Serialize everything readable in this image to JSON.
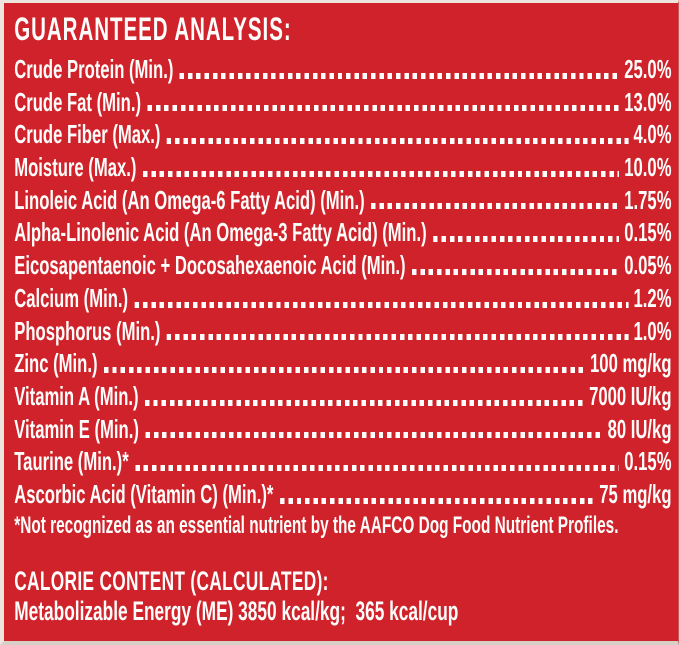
{
  "panel": {
    "bg_color": "#d0222b",
    "text_color": "#fdfdfb",
    "title": "GUARANTEED ANALYSIS:",
    "rows": [
      {
        "label": "Crude Protein (Min.)",
        "value": "25.0%"
      },
      {
        "label": "Crude Fat (Min.)",
        "value": "13.0%"
      },
      {
        "label": "Crude Fiber (Max.)",
        "value": "4.0%"
      },
      {
        "label": "Moisture (Max.)",
        "value": "10.0%"
      },
      {
        "label": "Linoleic Acid (An Omega-6 Fatty Acid) (Min.)",
        "value": "1.75%"
      },
      {
        "label": "Alpha-Linolenic Acid (An Omega-3 Fatty Acid) (Min.)",
        "value": "0.15%"
      },
      {
        "label": "Eicosapentaenoic + Docosahexaenoic Acid (Min.)",
        "value": "0.05%"
      },
      {
        "label": "Calcium (Min.)",
        "value": "1.2%"
      },
      {
        "label": "Phosphorus (Min.)",
        "value": "1.0%"
      },
      {
        "label": "Zinc (Min.)",
        "value": "100 mg/kg"
      },
      {
        "label": "Vitamin A (Min.)",
        "value": "7000 IU/kg"
      },
      {
        "label": "Vitamin E (Min.)",
        "value": "80 IU/kg"
      },
      {
        "label": "Taurine (Min.)*",
        "value": "0.15%"
      },
      {
        "label": "Ascorbic Acid (Vitamin C) (Min.)*",
        "value": "75 mg/kg"
      }
    ],
    "footnote": "*Not recognized as an essential nutrient by the AAFCO Dog Food Nutrient Profiles.",
    "calorie": {
      "title": "CALORIE CONTENT (CALCULATED):",
      "line": "Metabolizable Energy (ME) 3850 kcal/kg;  365 kcal/cup"
    }
  }
}
